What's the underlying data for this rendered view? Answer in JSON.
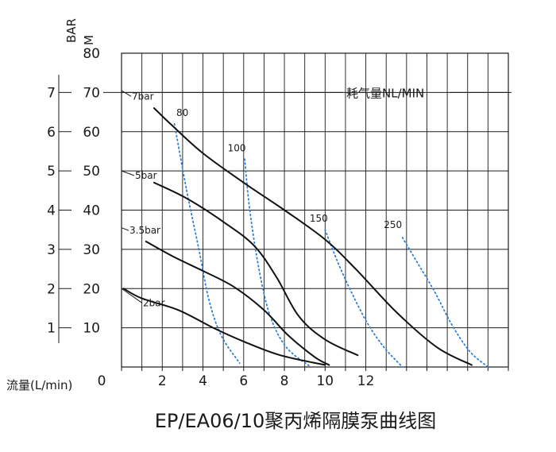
{
  "chart_data": {
    "type": "line",
    "title": "EP/EA06/10聚丙烯隔膜泵曲线图",
    "xlabel": "流量(L/min)",
    "x_ticks": [
      {
        "value": 0,
        "label": "0"
      },
      {
        "value": 2,
        "label": "2"
      },
      {
        "value": 4,
        "label": "4"
      },
      {
        "value": 6,
        "label": "6"
      },
      {
        "value": 8,
        "label": "8"
      },
      {
        "value": 10,
        "label": "10"
      },
      {
        "value": 12,
        "label": "12"
      }
    ],
    "xlim": [
      0,
      19
    ],
    "ylim": [
      0,
      80
    ],
    "y_m_label": "M",
    "y_m_ticks": [
      {
        "value": 10,
        "label": "10"
      },
      {
        "value": 20,
        "label": "20"
      },
      {
        "value": 30,
        "label": "30"
      },
      {
        "value": 40,
        "label": "40"
      },
      {
        "value": 50,
        "label": "50"
      },
      {
        "value": 60,
        "label": "60"
      },
      {
        "value": 70,
        "label": "70"
      },
      {
        "value": 80,
        "label": "80"
      }
    ],
    "y_bar_label": "BAR",
    "y_bar_ticks": [
      {
        "value": 1,
        "label": "1"
      },
      {
        "value": 2,
        "label": "2"
      },
      {
        "value": 3,
        "label": "3"
      },
      {
        "value": 4,
        "label": "4"
      },
      {
        "value": 5,
        "label": "5"
      },
      {
        "value": 6,
        "label": "6"
      },
      {
        "value": 7,
        "label": "7"
      }
    ],
    "air_consumption_label": "耗气量NL/MIN",
    "pressure_series": [
      {
        "name": "7bar",
        "points": [
          [
            1.6,
            66
          ],
          [
            2.4,
            62
          ],
          [
            4,
            54.5
          ],
          [
            6,
            47
          ],
          [
            8,
            40
          ],
          [
            10,
            32.5
          ],
          [
            11.5,
            25
          ],
          [
            13.5,
            14
          ],
          [
            15.5,
            5
          ],
          [
            17.2,
            0.5
          ]
        ]
      },
      {
        "name": "5bar",
        "points": [
          [
            1.6,
            47
          ],
          [
            3.2,
            43
          ],
          [
            5,
            37
          ],
          [
            6.5,
            31
          ],
          [
            7.6,
            23
          ],
          [
            8.7,
            13
          ],
          [
            10,
            7
          ],
          [
            11.6,
            3
          ]
        ]
      },
      {
        "name": "3.5bar",
        "points": [
          [
            1.2,
            32
          ],
          [
            2.6,
            28
          ],
          [
            4,
            24.5
          ],
          [
            5.5,
            20.5
          ],
          [
            7,
            14.5
          ],
          [
            8.2,
            8
          ],
          [
            9.5,
            2.5
          ],
          [
            10.2,
            0.5
          ]
        ]
      },
      {
        "name": "2bar",
        "points": [
          [
            0.1,
            20
          ],
          [
            1,
            17.5
          ],
          [
            2.8,
            14.5
          ],
          [
            4.5,
            10
          ],
          [
            6,
            6.5
          ],
          [
            7.8,
            3
          ],
          [
            10,
            0.5
          ]
        ]
      }
    ],
    "air_series": [
      {
        "name": "80",
        "points": [
          [
            2.6,
            62
          ],
          [
            3.2,
            45
          ],
          [
            3.8,
            30
          ],
          [
            4.3,
            17
          ],
          [
            4.9,
            8
          ],
          [
            5.8,
            1
          ]
        ]
      },
      {
        "name": "100",
        "points": [
          [
            6.05,
            53
          ],
          [
            6.3,
            40
          ],
          [
            6.75,
            25
          ],
          [
            7.3,
            13
          ],
          [
            8.1,
            5
          ],
          [
            9.3,
            0
          ]
        ]
      },
      {
        "name": "150",
        "points": [
          [
            10,
            35
          ],
          [
            10.6,
            27
          ],
          [
            11.3,
            19
          ],
          [
            12.1,
            11
          ],
          [
            12.9,
            5
          ],
          [
            13.8,
            0
          ]
        ]
      },
      {
        "name": "250",
        "points": [
          [
            13.8,
            33
          ],
          [
            14.6,
            26
          ],
          [
            15.4,
            19
          ],
          [
            16.2,
            11
          ],
          [
            17.1,
            4
          ],
          [
            18,
            0
          ]
        ]
      }
    ],
    "grid": true,
    "colors": {
      "pressure": "#111111",
      "air": "#2b7fd4",
      "grid": "#1a1a1a"
    }
  }
}
